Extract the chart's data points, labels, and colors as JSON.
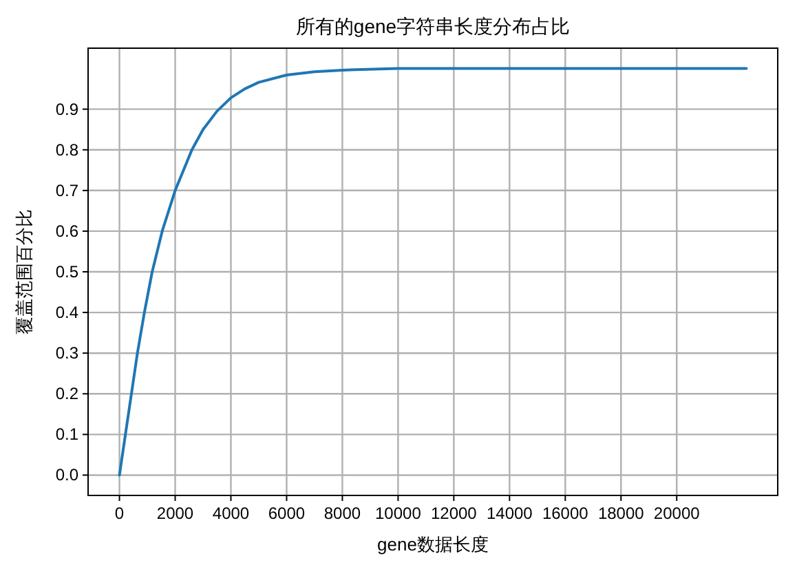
{
  "chart_data": {
    "type": "line",
    "title": "所有的gene字符串长度分布占比",
    "xlabel": "gene数据长度",
    "ylabel": "覆盖范围百分比",
    "x": [
      0,
      215,
      430,
      645,
      895,
      1175,
      1535,
      2000,
      2600,
      3000,
      3500,
      4000,
      4500,
      5000,
      6000,
      7000,
      8000,
      10000,
      12000,
      14000,
      16000,
      18000,
      20000,
      22500
    ],
    "values": [
      0,
      0.1,
      0.2,
      0.3,
      0.4,
      0.5,
      0.6,
      0.7,
      0.8,
      0.85,
      0.895,
      0.928,
      0.95,
      0.966,
      0.984,
      0.992,
      0.996,
      1.0,
      1.0,
      1.0,
      1.0,
      1.0,
      1.0,
      1.0
    ],
    "color": "#1f77b4",
    "xlim": [
      -1125,
      23625
    ],
    "ylim": [
      -0.05,
      1.05
    ],
    "xticks": [
      0,
      2000,
      4000,
      6000,
      8000,
      10000,
      12000,
      14000,
      16000,
      18000,
      20000
    ],
    "yticks": [
      {
        "value": 0,
        "label": "0.0"
      },
      0.1,
      0.2,
      0.3,
      0.4,
      0.5,
      0.6,
      0.7,
      0.8,
      0.9
    ],
    "grid": true
  }
}
